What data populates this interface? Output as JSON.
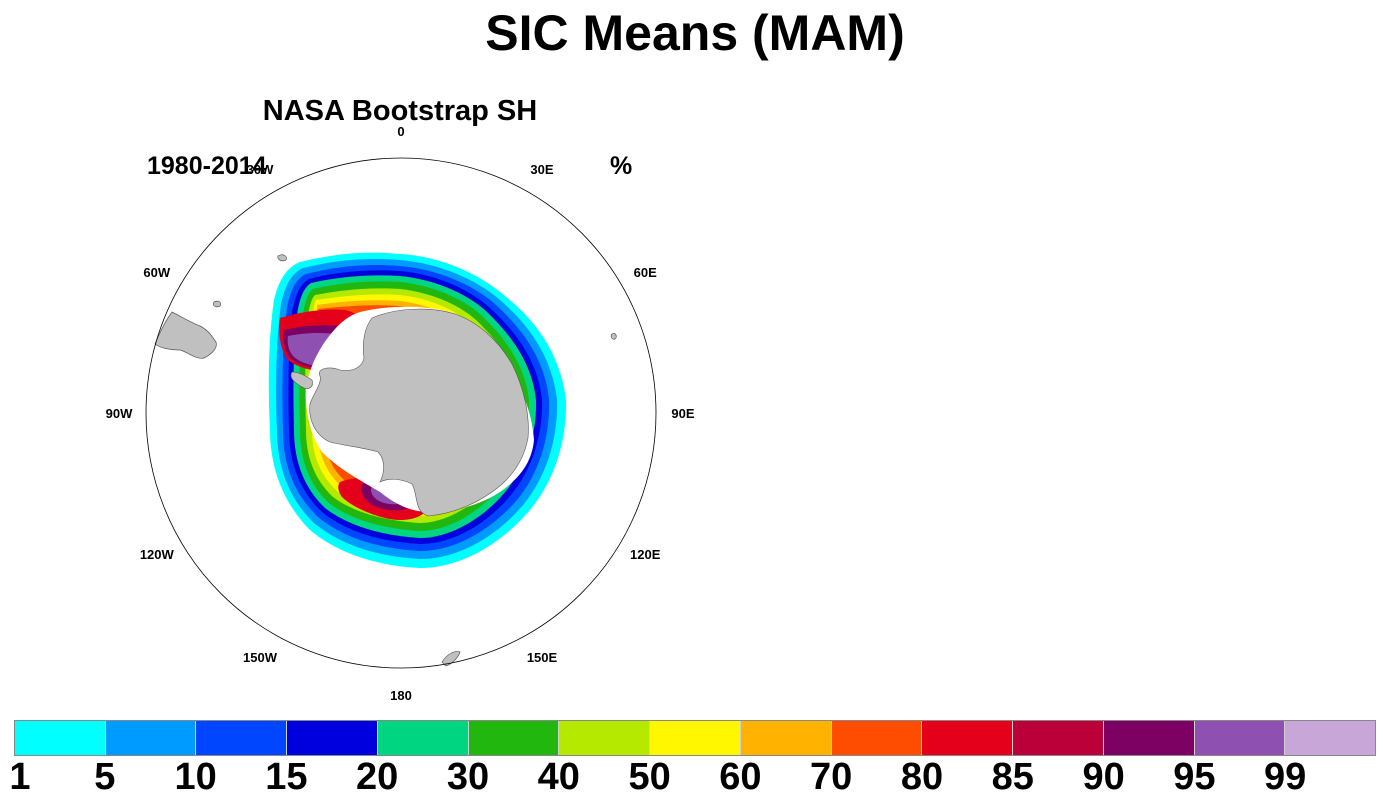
{
  "title": "SIC Means (MAM)",
  "panel": {
    "title": "NASA Bootstrap SH",
    "left_string": "1980-2014",
    "right_string": "%"
  },
  "map": {
    "projection": "south polar stereographic",
    "longitude_labels": [
      "0",
      "30E",
      "60E",
      "90E",
      "120E",
      "150E",
      "180",
      "150W",
      "120W",
      "90W",
      "60W",
      "30W"
    ],
    "land_color": "#c0c0c0",
    "ice_shelf_color": "#ffffff"
  },
  "colorbar": {
    "labels": [
      "1",
      "5",
      "10",
      "15",
      "20",
      "30",
      "40",
      "50",
      "60",
      "70",
      "80",
      "85",
      "90",
      "95",
      "99"
    ],
    "colors": [
      "#00ffff",
      "#009bff",
      "#0045ff",
      "#0000de",
      "#00d681",
      "#22b70e",
      "#b6e900",
      "#fff700",
      "#ffb300",
      "#ff4d00",
      "#e4001a",
      "#bb0039",
      "#7d0063",
      "#8f51b1",
      "#c8a6d8"
    ]
  }
}
